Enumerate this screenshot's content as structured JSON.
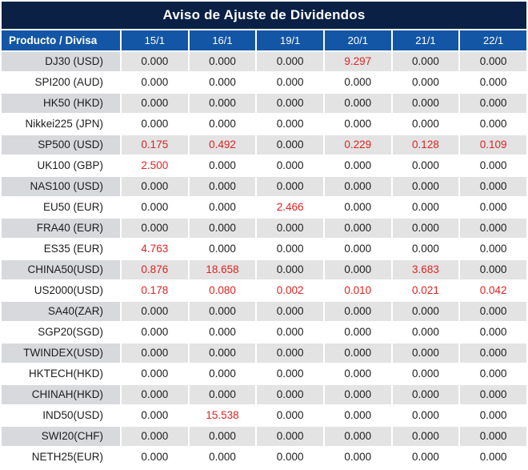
{
  "colors": {
    "title_bar_bg": "#0a2045",
    "title_text": "#ffffff",
    "header_bg": "#1356a5",
    "header_text": "#ffffff",
    "row_alt_label_bg": "#d7d9dc",
    "row_alt_bg": "#e3e3e4",
    "text_dark": "#1d1d1d",
    "value_red": "#e0231f"
  },
  "chart_data": {
    "type": "table",
    "title": "Aviso de Ajuste de Dividendos",
    "columns": [
      "Producto / Divisa",
      "15/1",
      "16/1",
      "19/1",
      "20/1",
      "21/1",
      "22/1"
    ],
    "rows": [
      {
        "label": "DJ30 (USD)",
        "values": [
          "0.000",
          "0.000",
          "0.000",
          "9.297",
          "0.000",
          "0.000"
        ]
      },
      {
        "label": "SPI200 (AUD)",
        "values": [
          "0.000",
          "0.000",
          "0.000",
          "0.000",
          "0.000",
          "0.000"
        ]
      },
      {
        "label": "HK50 (HKD)",
        "values": [
          "0.000",
          "0.000",
          "0.000",
          "0.000",
          "0.000",
          "0.000"
        ]
      },
      {
        "label": "Nikkei225 (JPN)",
        "values": [
          "0.000",
          "0.000",
          "0.000",
          "0.000",
          "0.000",
          "0.000"
        ]
      },
      {
        "label": "SP500 (USD)",
        "values": [
          "0.175",
          "0.492",
          "0.000",
          "0.229",
          "0.128",
          "0.109"
        ]
      },
      {
        "label": "UK100 (GBP)",
        "values": [
          "2.500",
          "0.000",
          "0.000",
          "0.000",
          "0.000",
          "0.000"
        ]
      },
      {
        "label": "NAS100 (USD)",
        "values": [
          "0.000",
          "0.000",
          "0.000",
          "0.000",
          "0.000",
          "0.000"
        ]
      },
      {
        "label": "EU50 (EUR)",
        "values": [
          "0.000",
          "0.000",
          "2.466",
          "0.000",
          "0.000",
          "0.000"
        ]
      },
      {
        "label": "FRA40 (EUR)",
        "values": [
          "0.000",
          "0.000",
          "0.000",
          "0.000",
          "0.000",
          "0.000"
        ]
      },
      {
        "label": "ES35 (EUR)",
        "values": [
          "4.763",
          "0.000",
          "0.000",
          "0.000",
          "0.000",
          "0.000"
        ]
      },
      {
        "label": "CHINA50(USD)",
        "values": [
          "0.876",
          "18.658",
          "0.000",
          "0.000",
          "3.683",
          "0.000"
        ]
      },
      {
        "label": "US2000(USD)",
        "values": [
          "0.178",
          "0.080",
          "0.002",
          "0.010",
          "0.021",
          "0.042"
        ]
      },
      {
        "label": "SA40(ZAR)",
        "values": [
          "0.000",
          "0.000",
          "0.000",
          "0.000",
          "0.000",
          "0.000"
        ]
      },
      {
        "label": "SGP20(SGD)",
        "values": [
          "0.000",
          "0.000",
          "0.000",
          "0.000",
          "0.000",
          "0.000"
        ]
      },
      {
        "label": "TWINDEX(USD)",
        "values": [
          "0.000",
          "0.000",
          "0.000",
          "0.000",
          "0.000",
          "0.000"
        ]
      },
      {
        "label": "HKTECH(HKD)",
        "values": [
          "0.000",
          "0.000",
          "0.000",
          "0.000",
          "0.000",
          "0.000"
        ]
      },
      {
        "label": "CHINAH(HKD)",
        "values": [
          "0.000",
          "0.000",
          "0.000",
          "0.000",
          "0.000",
          "0.000"
        ]
      },
      {
        "label": "IND50(USD)",
        "values": [
          "0.000",
          "15.538",
          "0.000",
          "0.000",
          "0.000",
          "0.000"
        ]
      },
      {
        "label": "SWI20(CHF)",
        "values": [
          "0.000",
          "0.000",
          "0.000",
          "0.000",
          "0.000",
          "0.000"
        ]
      },
      {
        "label": "NETH25(EUR)",
        "values": [
          "0.000",
          "0.000",
          "0.000",
          "0.000",
          "0.000",
          "0.000"
        ]
      }
    ]
  }
}
